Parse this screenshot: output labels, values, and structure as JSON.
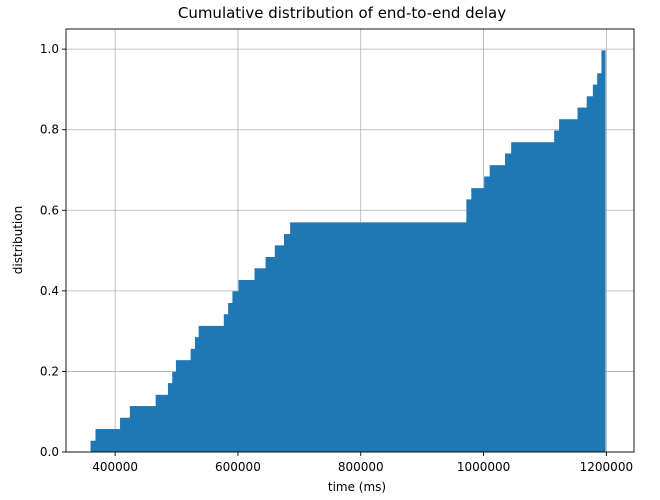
{
  "chart_data": {
    "type": "area",
    "title": "Cumulative distribution of end-to-end delay",
    "xlabel": "time (ms)",
    "ylabel": "distribution",
    "xlim": [
      320000,
      1245000
    ],
    "ylim": [
      0,
      1.05
    ],
    "x_ticks": [
      400000,
      600000,
      800000,
      1000000,
      1200000
    ],
    "x_tick_labels": [
      "400000",
      "600000",
      "800000",
      "1000000",
      "1200000"
    ],
    "y_ticks": [
      0.0,
      0.2,
      0.4,
      0.6,
      0.8,
      1.0
    ],
    "y_tick_labels": [
      "0.0",
      "0.2",
      "0.4",
      "0.6",
      "0.8",
      "1.0"
    ],
    "grid": true,
    "color": "#1f77b4",
    "step_edges": [
      360000,
      368000,
      408000,
      424000,
      466000,
      486000,
      493000,
      499000,
      523000,
      530000,
      536000,
      577000,
      584000,
      591000,
      601000,
      627000,
      645000,
      660000,
      675000,
      685000,
      695000,
      972000,
      980000,
      1001000,
      1010000,
      1035000,
      1045000,
      1050000,
      1067000,
      1115000,
      1123000,
      1153000,
      1168000,
      1178000,
      1185000,
      1192000,
      1198000
    ],
    "cumulative_values": [
      0.028,
      0.057,
      0.085,
      0.114,
      0.142,
      0.171,
      0.199,
      0.228,
      0.256,
      0.285,
      0.313,
      0.342,
      0.37,
      0.399,
      0.427,
      0.456,
      0.484,
      0.513,
      0.541,
      0.57,
      0.57,
      0.627,
      0.655,
      0.684,
      0.712,
      0.741,
      0.769,
      0.769,
      0.769,
      0.798,
      0.826,
      0.855,
      0.883,
      0.912,
      0.94,
      0.997
    ]
  }
}
